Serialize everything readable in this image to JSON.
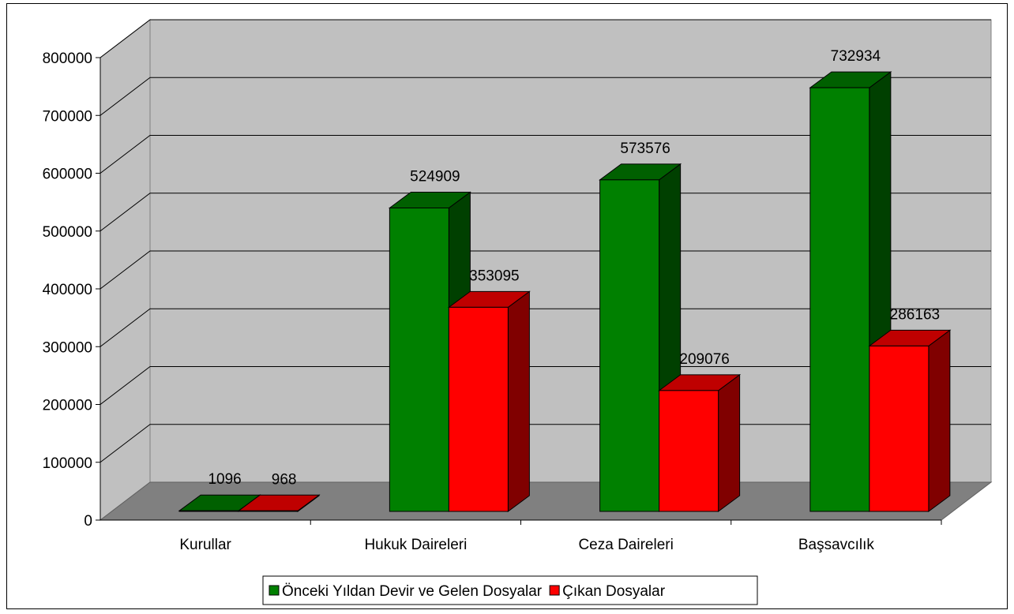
{
  "chart_data": {
    "type": "bar",
    "categories": [
      "Kurullar",
      "Hukuk Daireleri",
      "Ceza Daireleri",
      "Başsavcılık"
    ],
    "series": [
      {
        "name": "Önceki Yıldan Devir ve Gelen Dosyalar",
        "values": [
          1096,
          524909,
          573576,
          732934
        ],
        "color": "#008000"
      },
      {
        "name": "Çıkan Dosyalar",
        "values": [
          968,
          353095,
          209076,
          286163
        ],
        "color": "#ff0000"
      }
    ],
    "ylim": [
      0,
      800000
    ],
    "yticks": [
      "0",
      "100000",
      "200000",
      "300000",
      "400000",
      "500000",
      "600000",
      "700000",
      "800000"
    ],
    "data_labels": [
      [
        "1096",
        "968"
      ],
      [
        "524909",
        "353095"
      ],
      [
        "573576",
        "209076"
      ],
      [
        "732934",
        "286163"
      ]
    ],
    "grid": true,
    "style": "3d-clustered-column",
    "legend_position": "bottom",
    "colors": {
      "wall": "#c0c0c0",
      "floor": "#808080"
    }
  }
}
